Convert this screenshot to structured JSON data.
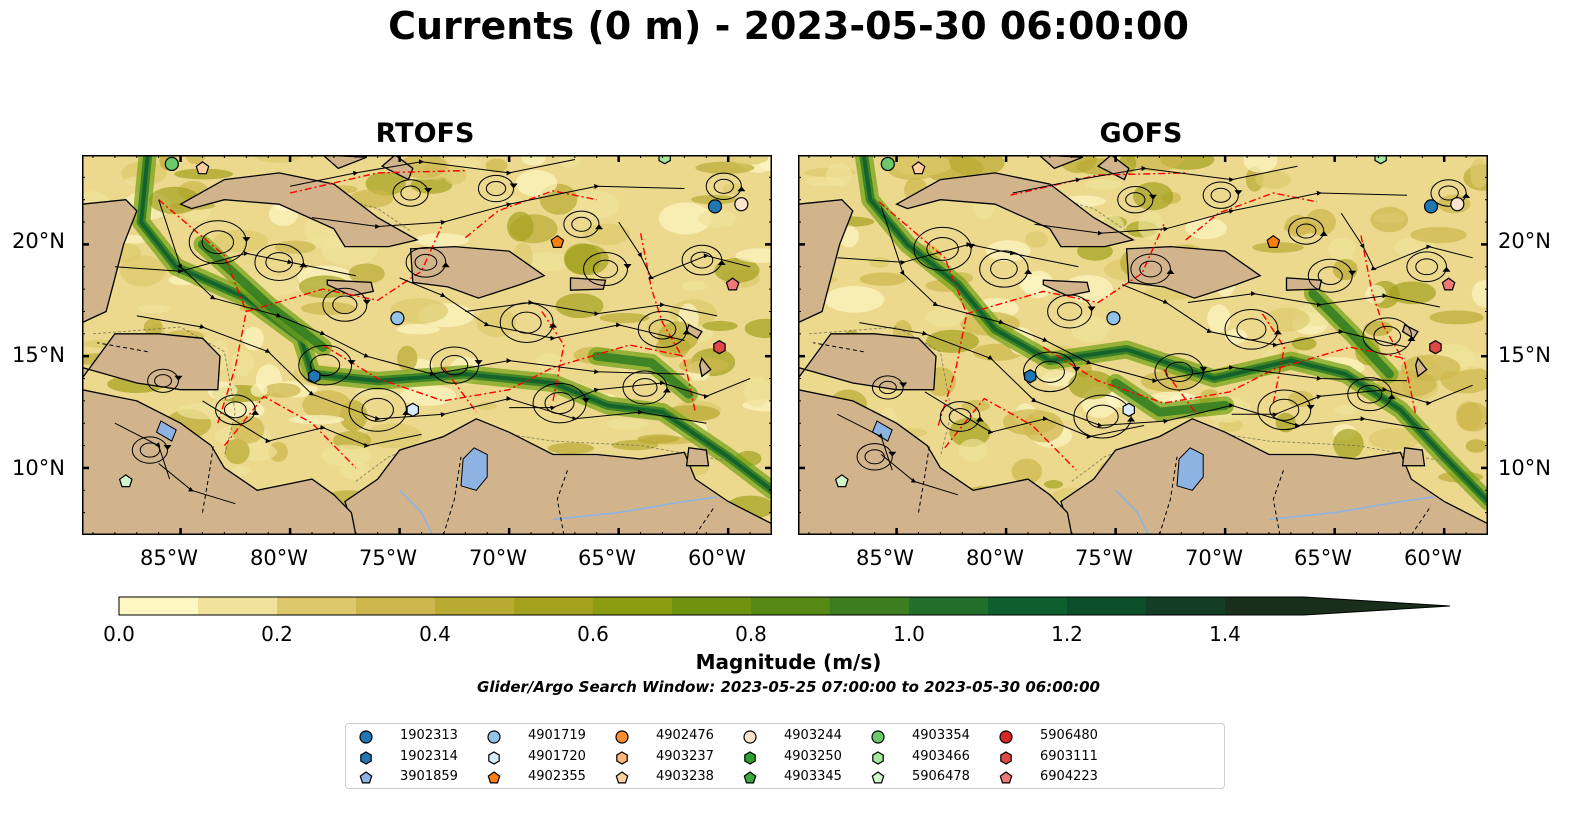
{
  "title": "Currents (0 m) - 2023-05-30 06:00:00",
  "panels": [
    {
      "title": "RTOFS"
    },
    {
      "title": "GOFS"
    }
  ],
  "map": {
    "lon_range": [
      -89.5,
      -58
    ],
    "lat_range": [
      7,
      24
    ],
    "x_ticks": [
      "85°W",
      "80°W",
      "75°W",
      "70°W",
      "65°W",
      "60°W"
    ],
    "y_ticks": [
      "20°N",
      "15°N",
      "10°N"
    ],
    "colors": {
      "land": "#d2b48c",
      "lake": "#8db3e2",
      "streamline": "#000000",
      "eez_boundary": "#ff0000"
    }
  },
  "colorbar": {
    "label": "Magnitude (m/s)",
    "ticks": [
      "0.0",
      "0.2",
      "0.4",
      "0.6",
      "0.8",
      "1.0",
      "1.2",
      "1.4"
    ],
    "range": [
      0,
      1.5
    ],
    "extend": "max",
    "colors": [
      "#fdf7c4",
      "#f0e29a",
      "#ddc96b",
      "#cdb64b",
      "#b9aa32",
      "#a4a11e",
      "#8a9c10",
      "#6f930f",
      "#558815",
      "#3c7d1f",
      "#226e2b",
      "#0f5f2e",
      "#0b4f2a",
      "#143d25",
      "#1a2e1c"
    ]
  },
  "search_window": "Glider/Argo Search Window: 2023-05-25 07:00:00 to 2023-05-30 06:00:00",
  "legend": {
    "items": [
      {
        "label": "1902313",
        "marker": "circle",
        "color": "#1f77b4"
      },
      {
        "label": "1902314",
        "marker": "hexagon",
        "color": "#1f77b4"
      },
      {
        "label": "3901859",
        "marker": "pentagon",
        "color": "#8db3e2"
      },
      {
        "label": "4901719",
        "marker": "circle",
        "color": "#93c4e8"
      },
      {
        "label": "4901720",
        "marker": "hexagon",
        "color": "#d6ecfa"
      },
      {
        "label": "4902355",
        "marker": "pentagon",
        "color": "#ff7f0e"
      },
      {
        "label": "4902476",
        "marker": "circle",
        "color": "#ff8c2e"
      },
      {
        "label": "4903237",
        "marker": "hexagon",
        "color": "#ffb77a"
      },
      {
        "label": "4903238",
        "marker": "pentagon",
        "color": "#ffd0a0"
      },
      {
        "label": "4903244",
        "marker": "circle",
        "color": "#fde3cc"
      },
      {
        "label": "4903250",
        "marker": "hexagon",
        "color": "#2ca02c"
      },
      {
        "label": "4903345",
        "marker": "pentagon",
        "color": "#3aab3a"
      },
      {
        "label": "4903354",
        "marker": "circle",
        "color": "#6bc96b"
      },
      {
        "label": "4903466",
        "marker": "hexagon",
        "color": "#a8e6a0"
      },
      {
        "label": "5906478",
        "marker": "pentagon",
        "color": "#d3f5cc"
      },
      {
        "label": "5906480",
        "marker": "circle",
        "color": "#d62728"
      },
      {
        "label": "6903111",
        "marker": "hexagon",
        "color": "#e04848"
      },
      {
        "label": "6904223",
        "marker": "pentagon",
        "color": "#f07878"
      }
    ]
  },
  "floats": [
    {
      "id": "1902313",
      "lon": -60.6,
      "lat": 21.7
    },
    {
      "id": "4903244",
      "lon": -59.4,
      "lat": 21.8
    },
    {
      "id": "6904223",
      "lon": -59.8,
      "lat": 18.2
    },
    {
      "id": "6903111",
      "lon": -60.4,
      "lat": 15.4
    },
    {
      "id": "4901719",
      "lon": -75.1,
      "lat": 16.7
    },
    {
      "id": "1902314",
      "lon": -78.9,
      "lat": 14.1
    },
    {
      "id": "4901720",
      "lon": -74.4,
      "lat": 12.6
    },
    {
      "id": "4903354",
      "lon": -85.4,
      "lat": 23.6
    },
    {
      "id": "4903238",
      "lon": -84.0,
      "lat": 23.4
    },
    {
      "id": "4902355",
      "lon": -67.8,
      "lat": 20.1
    },
    {
      "id": "5906478",
      "lon": -87.5,
      "lat": 9.4
    },
    {
      "id": "4903466",
      "lon": -62.9,
      "lat": 23.9
    }
  ]
}
